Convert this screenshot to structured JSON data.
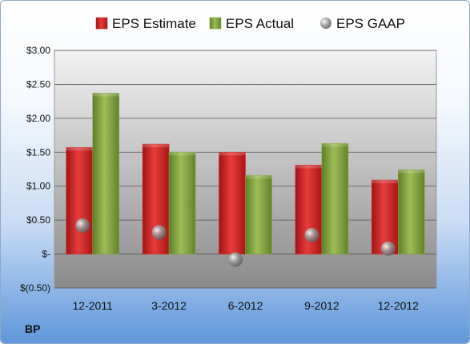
{
  "chart_data": {
    "type": "bar",
    "title": "",
    "xlabel": "",
    "ylabel": "",
    "categories": [
      "12-2011",
      "3-2012",
      "6-2012",
      "9-2012",
      "12-2012"
    ],
    "series": [
      {
        "name": "EPS Estimate",
        "kind": "bar",
        "color": "#d42a2a",
        "values": [
          1.57,
          1.62,
          1.5,
          1.31,
          1.09
        ]
      },
      {
        "name": "EPS Actual",
        "kind": "bar",
        "color": "#86a844",
        "values": [
          2.37,
          1.5,
          1.16,
          1.63,
          1.24
        ]
      },
      {
        "name": "EPS GAAP",
        "kind": "point",
        "color": "#9a9a9a",
        "values": [
          0.42,
          0.32,
          -0.08,
          0.28,
          0.08
        ]
      }
    ],
    "ylim": [
      -0.5,
      3.0
    ],
    "yticks": [
      -0.5,
      0,
      0.5,
      1.0,
      1.5,
      2.0,
      2.5,
      3.0
    ],
    "ytick_labels": [
      "$(0.50)",
      "$-",
      "$0.50",
      "$1.00",
      "$1.50",
      "$2.00",
      "$2.50",
      "$3.00"
    ],
    "grid": true,
    "legend_position": "top"
  },
  "footer": {
    "ticker": "BP"
  }
}
